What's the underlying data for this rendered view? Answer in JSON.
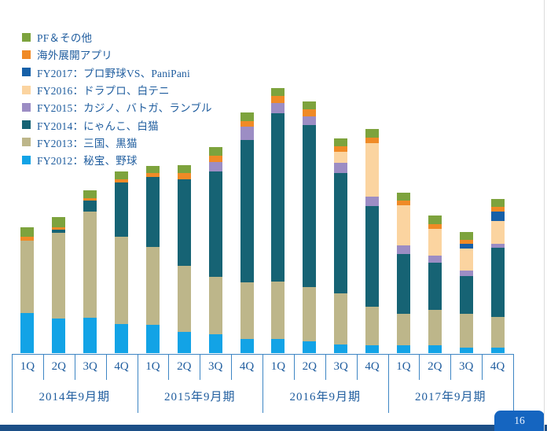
{
  "footer": {
    "page_number": "16"
  },
  "colors": {
    "axis_line": "#3e86c4",
    "label_text": "#1e5c9e",
    "footer_band": "#1c4f87",
    "page_box": "#1565c0"
  },
  "chart_data": {
    "type": "bar",
    "stacked": true,
    "title": "",
    "xlabel": "",
    "ylabel": "",
    "axis_note": "no y-axis scale shown; values are relative segment heights (px units read from image)",
    "grid": false,
    "legend_position": "top-left, reverse stacking order",
    "group_labels": [
      "2014年9月期",
      "2015年9月期",
      "2016年9月期",
      "2017年9月期"
    ],
    "quarter_labels": [
      "1Q",
      "2Q",
      "3Q",
      "4Q"
    ],
    "categories": [
      "1Q",
      "2Q",
      "3Q",
      "4Q",
      "1Q",
      "2Q",
      "3Q",
      "4Q",
      "1Q",
      "2Q",
      "3Q",
      "4Q",
      "1Q",
      "2Q",
      "3Q",
      "4Q"
    ],
    "series": [
      {
        "name": "FY2012：秘宝、野球",
        "color": "#12a3e6",
        "values": [
          51,
          44,
          45,
          37,
          36,
          27,
          24,
          18,
          18,
          15,
          11,
          10,
          10,
          10,
          7,
          7
        ]
      },
      {
        "name": "FY2013：三国、黒猫",
        "color": "#bdb68a",
        "values": [
          92,
          109,
          135,
          111,
          99,
          84,
          73,
          72,
          73,
          69,
          65,
          49,
          40,
          45,
          43,
          39
        ]
      },
      {
        "name": "FY2014：にゃんこ、白猫",
        "color": "#166374",
        "values": [
          0,
          4,
          14,
          69,
          89,
          110,
          134,
          181,
          214,
          206,
          153,
          128,
          76,
          60,
          48,
          88
        ]
      },
      {
        "name": "FY2015：カジノ、バトガ、ランブル",
        "color": "#9c8dc4",
        "values": [
          0,
          0,
          0,
          0,
          0,
          0,
          12,
          17,
          13,
          11,
          13,
          12,
          11,
          9,
          7,
          5
        ]
      },
      {
        "name": "FY2016：ドラプロ、白テニ",
        "color": "#fbd4a0",
        "values": [
          0,
          0,
          0,
          0,
          0,
          0,
          0,
          0,
          0,
          0,
          14,
          68,
          51,
          34,
          28,
          29
        ]
      },
      {
        "name": "FY2017：プロ野球VS、PaniPani",
        "color": "#1660a8",
        "values": [
          0,
          0,
          0,
          0,
          0,
          0,
          0,
          0,
          0,
          0,
          0,
          0,
          0,
          0,
          6,
          12
        ]
      },
      {
        "name": "海外展開アプリ",
        "color": "#f08a26",
        "values": [
          5,
          3,
          3,
          4,
          5,
          8,
          8,
          7,
          9,
          9,
          7,
          7,
          6,
          6,
          5,
          6
        ]
      },
      {
        "name": "PF＆その他",
        "color": "#7da33d",
        "values": [
          12,
          13,
          10,
          10,
          9,
          10,
          11,
          11,
          10,
          10,
          10,
          11,
          10,
          11,
          10,
          10
        ]
      }
    ]
  }
}
